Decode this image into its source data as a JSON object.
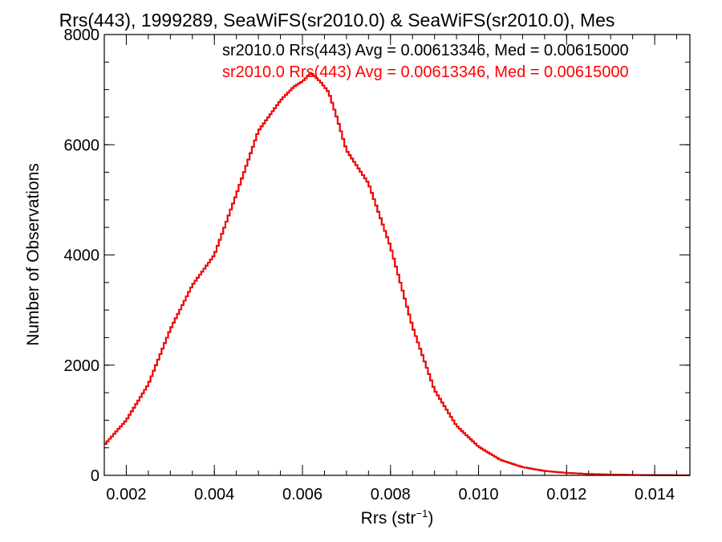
{
  "chart_data": {
    "type": "histogram-step",
    "title": "Rrs(443), 1999289, SeaWiFS(sr2010.0) & SeaWiFS(sr2010.0), Mes",
    "xlabel_main": "Rrs (str",
    "xlabel_sup": "−1",
    "xlabel_close": ")",
    "ylabel": "Number of Observations",
    "xlim": [
      0.0015,
      0.0148
    ],
    "ylim": [
      0,
      8000
    ],
    "x_ticks": [
      {
        "value": 0.002,
        "label": "0.002"
      },
      {
        "value": 0.004,
        "label": "0.004"
      },
      {
        "value": 0.006,
        "label": "0.006"
      },
      {
        "value": 0.008,
        "label": "0.008"
      },
      {
        "value": 0.01,
        "label": "0.010"
      },
      {
        "value": 0.012,
        "label": "0.012"
      },
      {
        "value": 0.014,
        "label": "0.014"
      }
    ],
    "x_minor_step": 0.0005,
    "y_ticks": [
      {
        "value": 0,
        "label": "0"
      },
      {
        "value": 2000,
        "label": "2000"
      },
      {
        "value": 4000,
        "label": "4000"
      },
      {
        "value": 6000,
        "label": "6000"
      },
      {
        "value": 8000,
        "label": "8000"
      }
    ],
    "y_minor_step": 500,
    "grid": false,
    "legend_position": "top-right",
    "series": [
      {
        "name": "sr2010.0 Rrs(443) Avg = 0.00613346, Med = 0.00615000",
        "color": "#000000",
        "bin_width": 5e-05,
        "x": [
          0.0015,
          0.002,
          0.0025,
          0.003,
          0.0035,
          0.004,
          0.0045,
          0.005,
          0.0055,
          0.0058,
          0.006,
          0.0062,
          0.0064,
          0.0066,
          0.0068,
          0.007,
          0.0075,
          0.008,
          0.0085,
          0.009,
          0.0095,
          0.01,
          0.0105,
          0.011,
          0.0115,
          0.012,
          0.0125,
          0.013,
          0.0135,
          0.014,
          0.0148
        ],
        "values": [
          550,
          1000,
          1650,
          2650,
          3450,
          4000,
          5100,
          6250,
          6800,
          7050,
          7150,
          7300,
          7150,
          6950,
          6450,
          5900,
          5300,
          4150,
          2700,
          1550,
          900,
          520,
          280,
          150,
          80,
          45,
          25,
          14,
          8,
          4,
          2
        ]
      },
      {
        "name": "sr2010.0 Rrs(443) Avg = 0.00613346, Med = 0.00615000",
        "color": "#ff0000",
        "bin_width": 5e-05,
        "x": [
          0.0015,
          0.002,
          0.0025,
          0.003,
          0.0035,
          0.004,
          0.0045,
          0.005,
          0.0055,
          0.0058,
          0.006,
          0.0062,
          0.0064,
          0.0066,
          0.0068,
          0.007,
          0.0075,
          0.008,
          0.0085,
          0.009,
          0.0095,
          0.01,
          0.0105,
          0.011,
          0.0115,
          0.012,
          0.0125,
          0.013,
          0.0135,
          0.014,
          0.0148
        ],
        "values": [
          550,
          1000,
          1650,
          2650,
          3450,
          4000,
          5100,
          6250,
          6800,
          7050,
          7150,
          7300,
          7150,
          6950,
          6450,
          5900,
          5300,
          4150,
          2700,
          1550,
          900,
          520,
          280,
          150,
          80,
          45,
          25,
          14,
          8,
          4,
          2
        ]
      }
    ]
  }
}
